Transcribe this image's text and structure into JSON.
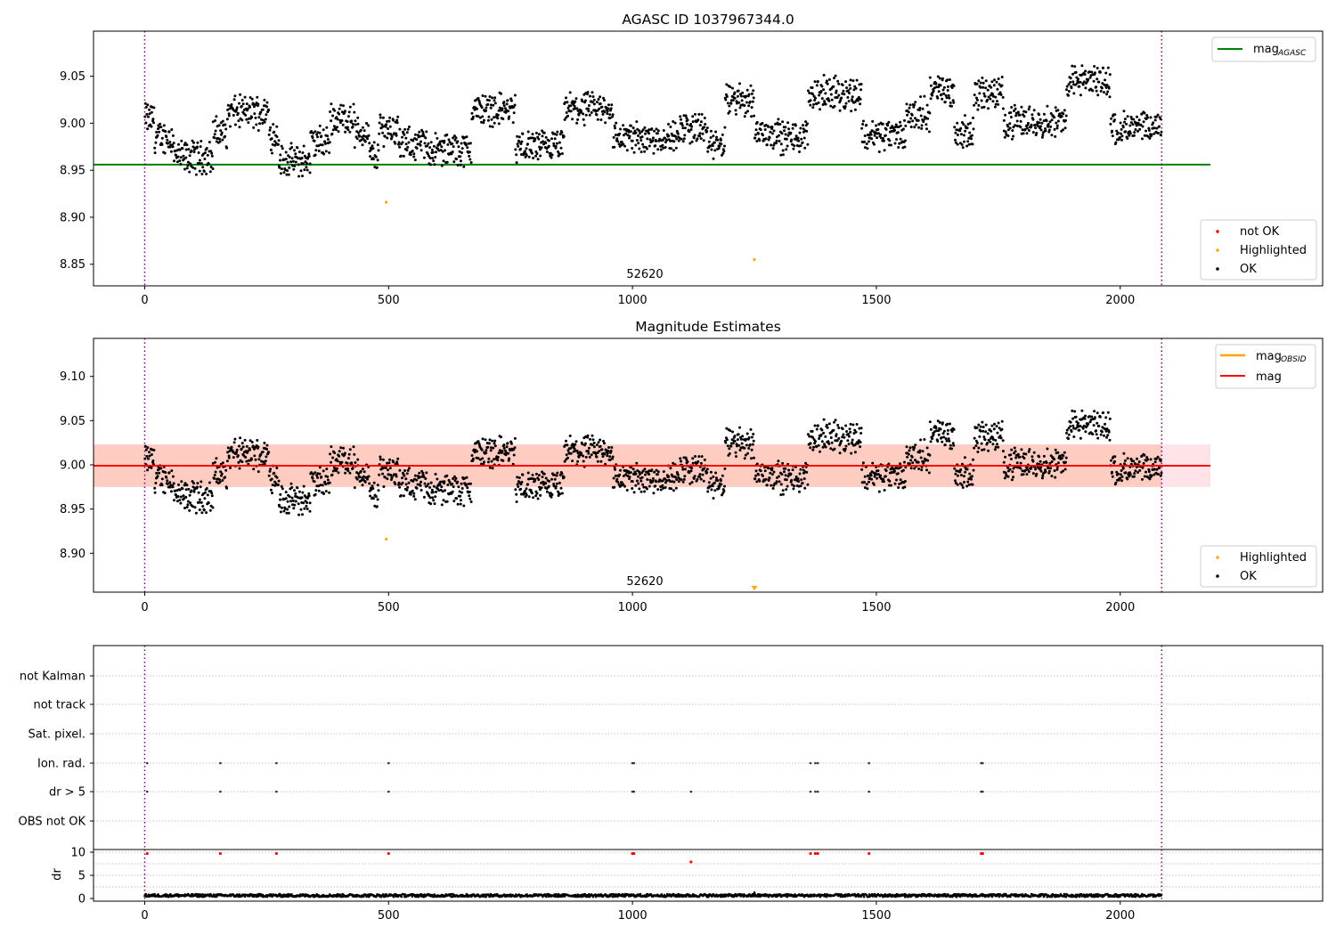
{
  "colors": {
    "ok": "#000000",
    "not_ok": "#ff0000",
    "highlighted": "#ffa500",
    "mag_agasc": "#008000",
    "mag_obsid": "#ffa500",
    "mag": "#ff0000",
    "band_outer": "#ffc0cb",
    "band_inner": "#ffa07a",
    "vline": "#800080",
    "grid": "#b0b0b0"
  },
  "chart_data": [
    {
      "type": "scatter",
      "title": "AGASC ID 1037967344.0",
      "xlim": [
        -105,
        2415
      ],
      "ylim": [
        8.827,
        9.098
      ],
      "xticks": [
        0,
        500,
        1000,
        1500,
        2000
      ],
      "yticks": [
        8.85,
        8.9,
        8.95,
        9.0,
        9.05
      ],
      "obsid_label": {
        "text": "52620",
        "x": 1040
      },
      "obsid_boundaries": [
        0,
        2085
      ],
      "mag_agasc": 8.956,
      "hline_x_range": [
        -105,
        2185
      ],
      "legend_lines": [
        {
          "name": "magAGASC",
          "label_main": "mag",
          "label_sub": "AGASC"
        }
      ],
      "legend_points": [
        {
          "name": "not OK",
          "color_key": "not_ok"
        },
        {
          "name": "Highlighted",
          "color_key": "highlighted"
        },
        {
          "name": "OK",
          "color_key": "ok"
        }
      ],
      "highlighted_points": [
        {
          "x": 495,
          "y": 8.916
        },
        {
          "x": 1250,
          "y": 8.855
        }
      ],
      "ok_series": {
        "x_start": 0,
        "x_end": 2085,
        "n": 2085,
        "baseline": 9.0
      }
    },
    {
      "type": "scatter",
      "title": "Magnitude Estimates",
      "xlim": [
        -105,
        2415
      ],
      "ylim": [
        8.856,
        9.143
      ],
      "xticks": [
        0,
        500,
        1000,
        1500,
        2000
      ],
      "yticks": [
        8.9,
        8.95,
        9.0,
        9.05,
        9.1
      ],
      "obsid_label": {
        "text": "52620",
        "x": 1040
      },
      "obsid_boundaries": [
        0,
        2085
      ],
      "mag": 8.999,
      "mag_band_outer": [
        8.975,
        9.023
      ],
      "mag_band_inner": [
        8.975,
        9.023
      ],
      "band_x_range": [
        -105,
        2185
      ],
      "legend_lines": [
        {
          "name": "magOBSID",
          "label_main": "mag",
          "label_sub": "OBSID",
          "color_key": "mag_obsid"
        },
        {
          "name": "mag",
          "label_main": "mag",
          "label_sub": "",
          "color_key": "mag"
        }
      ],
      "legend_points": [
        {
          "name": "Highlighted",
          "color_key": "highlighted"
        },
        {
          "name": "OK",
          "color_key": "ok"
        }
      ],
      "highlighted_points": [
        {
          "x": 495,
          "y": 8.916
        }
      ],
      "offscale_marker": {
        "x": 1250
      }
    },
    {
      "type": "scatter",
      "title": "",
      "xlim": [
        -105,
        2415
      ],
      "category_ylabels": [
        "not Kalman",
        "not track",
        "Sat. pixel.",
        "Ion. rad.",
        "dr > 5",
        "OBS not OK"
      ],
      "flag_points": {
        "Ion. rad.": [
          5,
          155,
          270,
          500,
          1000,
          1003,
          1365,
          1375,
          1380,
          1485,
          1715,
          1718
        ],
        "dr > 5": [
          5,
          155,
          270,
          500,
          1000,
          1003,
          1120,
          1365,
          1375,
          1380,
          1485,
          1715,
          1718
        ]
      },
      "obsid_boundaries": [
        0,
        2085
      ]
    },
    {
      "type": "scatter",
      "title": "",
      "ylabel": "dr",
      "xlim": [
        -105,
        2415
      ],
      "ylim": [
        0,
        10.5
      ],
      "xticks": [
        0,
        500,
        1000,
        1500,
        2000
      ],
      "yticks": [
        0,
        5,
        10
      ],
      "red_points": [
        {
          "x": 5,
          "y": 9.7
        },
        {
          "x": 155,
          "y": 9.7
        },
        {
          "x": 270,
          "y": 9.7
        },
        {
          "x": 500,
          "y": 9.7
        },
        {
          "x": 1000,
          "y": 9.7
        },
        {
          "x": 1003,
          "y": 9.7
        },
        {
          "x": 1120,
          "y": 7.9
        },
        {
          "x": 1365,
          "y": 9.7
        },
        {
          "x": 1375,
          "y": 9.7
        },
        {
          "x": 1380,
          "y": 9.7
        },
        {
          "x": 1485,
          "y": 9.7
        },
        {
          "x": 1715,
          "y": 9.7
        },
        {
          "x": 1718,
          "y": 9.7
        }
      ],
      "obsid_boundaries": [
        0,
        2085
      ]
    }
  ]
}
